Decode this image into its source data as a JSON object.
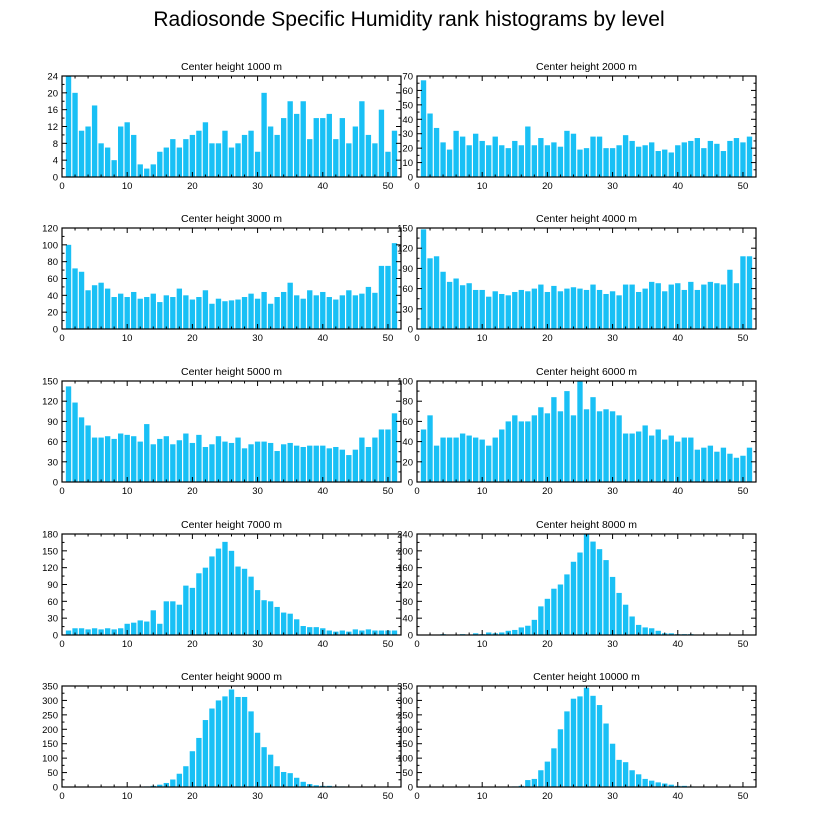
{
  "title": "Radiosonde Specific Humidity rank histograms by level",
  "bar_color": "#19c0f5",
  "chart_data": [
    {
      "type": "bar",
      "title": "Center height 1000 m",
      "xlim": [
        0,
        52
      ],
      "xticks": [
        0,
        10,
        20,
        30,
        40,
        50
      ],
      "ylim": [
        0,
        24
      ],
      "yticks": [
        0,
        4,
        8,
        12,
        16,
        20,
        24
      ],
      "x": [
        1,
        2,
        3,
        4,
        5,
        6,
        7,
        8,
        9,
        10,
        11,
        12,
        13,
        14,
        15,
        16,
        17,
        18,
        19,
        20,
        21,
        22,
        23,
        24,
        25,
        26,
        27,
        28,
        29,
        30,
        31,
        32,
        33,
        34,
        35,
        36,
        37,
        38,
        39,
        40,
        41,
        42,
        43,
        44,
        45,
        46,
        47,
        48,
        49,
        50,
        51
      ],
      "values": [
        24,
        20,
        11,
        12,
        17,
        8,
        7,
        4,
        12,
        13,
        10,
        3,
        2,
        3,
        6,
        7,
        9,
        7,
        9,
        10,
        11,
        13,
        8,
        8,
        11,
        7,
        8,
        10,
        11,
        6,
        20,
        12,
        10,
        14,
        18,
        15,
        18,
        9,
        14,
        14,
        15,
        9,
        14,
        8,
        12,
        18,
        10,
        8,
        16,
        6,
        11
      ]
    },
    {
      "type": "bar",
      "title": "Center height 2000 m",
      "xlim": [
        0,
        52
      ],
      "xticks": [
        0,
        10,
        20,
        30,
        40,
        50
      ],
      "ylim": [
        0,
        70
      ],
      "yticks": [
        0,
        10,
        20,
        30,
        40,
        50,
        60,
        70
      ],
      "x": [
        1,
        2,
        3,
        4,
        5,
        6,
        7,
        8,
        9,
        10,
        11,
        12,
        13,
        14,
        15,
        16,
        17,
        18,
        19,
        20,
        21,
        22,
        23,
        24,
        25,
        26,
        27,
        28,
        29,
        30,
        31,
        32,
        33,
        34,
        35,
        36,
        37,
        38,
        39,
        40,
        41,
        42,
        43,
        44,
        45,
        46,
        47,
        48,
        49,
        50,
        51
      ],
      "values": [
        67,
        44,
        34,
        24,
        19,
        32,
        28,
        22,
        30,
        25,
        22,
        28,
        22,
        20,
        25,
        22,
        35,
        22,
        27,
        22,
        24,
        21,
        32,
        30,
        19,
        20,
        28,
        28,
        20,
        20,
        22,
        29,
        25,
        21,
        22,
        24,
        18,
        19,
        17,
        22,
        24,
        25,
        27,
        20,
        25,
        23,
        18,
        25,
        27,
        24,
        28
      ]
    },
    {
      "type": "bar",
      "title": "Center height 3000 m",
      "xlim": [
        0,
        52
      ],
      "xticks": [
        0,
        10,
        20,
        30,
        40,
        50
      ],
      "ylim": [
        0,
        120
      ],
      "yticks": [
        0,
        20,
        40,
        60,
        80,
        100,
        120
      ],
      "x": [
        1,
        2,
        3,
        4,
        5,
        6,
        7,
        8,
        9,
        10,
        11,
        12,
        13,
        14,
        15,
        16,
        17,
        18,
        19,
        20,
        21,
        22,
        23,
        24,
        25,
        26,
        27,
        28,
        29,
        30,
        31,
        32,
        33,
        34,
        35,
        36,
        37,
        38,
        39,
        40,
        41,
        42,
        43,
        44,
        45,
        46,
        47,
        48,
        49,
        50,
        51
      ],
      "values": [
        100,
        72,
        68,
        46,
        52,
        55,
        48,
        38,
        42,
        38,
        44,
        36,
        38,
        42,
        32,
        40,
        38,
        48,
        40,
        35,
        38,
        46,
        30,
        36,
        33,
        34,
        35,
        38,
        42,
        36,
        44,
        30,
        38,
        44,
        55,
        40,
        36,
        46,
        40,
        44,
        38,
        35,
        40,
        46,
        40,
        42,
        50,
        43,
        75,
        75,
        102
      ]
    },
    {
      "type": "bar",
      "title": "Center height 4000 m",
      "xlim": [
        0,
        52
      ],
      "xticks": [
        0,
        10,
        20,
        30,
        40,
        50
      ],
      "ylim": [
        0,
        150
      ],
      "yticks": [
        0,
        30,
        60,
        90,
        120,
        150
      ],
      "x": [
        1,
        2,
        3,
        4,
        5,
        6,
        7,
        8,
        9,
        10,
        11,
        12,
        13,
        14,
        15,
        16,
        17,
        18,
        19,
        20,
        21,
        22,
        23,
        24,
        25,
        26,
        27,
        28,
        29,
        30,
        31,
        32,
        33,
        34,
        35,
        36,
        37,
        38,
        39,
        40,
        41,
        42,
        43,
        44,
        45,
        46,
        47,
        48,
        49,
        50,
        51
      ],
      "values": [
        148,
        105,
        108,
        85,
        70,
        75,
        65,
        68,
        58,
        58,
        48,
        56,
        52,
        50,
        55,
        58,
        56,
        60,
        66,
        55,
        64,
        56,
        60,
        62,
        60,
        58,
        66,
        58,
        52,
        56,
        50,
        66,
        66,
        55,
        60,
        70,
        68,
        56,
        66,
        68,
        58,
        70,
        58,
        66,
        70,
        68,
        66,
        88,
        68,
        108,
        108
      ]
    },
    {
      "type": "bar",
      "title": "Center height 5000 m",
      "xlim": [
        0,
        52
      ],
      "xticks": [
        0,
        10,
        20,
        30,
        40,
        50
      ],
      "ylim": [
        0,
        150
      ],
      "yticks": [
        0,
        30,
        60,
        90,
        120,
        150
      ],
      "x": [
        1,
        2,
        3,
        4,
        5,
        6,
        7,
        8,
        9,
        10,
        11,
        12,
        13,
        14,
        15,
        16,
        17,
        18,
        19,
        20,
        21,
        22,
        23,
        24,
        25,
        26,
        27,
        28,
        29,
        30,
        31,
        32,
        33,
        34,
        35,
        36,
        37,
        38,
        39,
        40,
        41,
        42,
        43,
        44,
        45,
        46,
        47,
        48,
        49,
        50,
        51
      ],
      "values": [
        142,
        118,
        96,
        84,
        66,
        66,
        68,
        64,
        72,
        70,
        68,
        60,
        86,
        56,
        64,
        68,
        56,
        62,
        72,
        58,
        70,
        52,
        56,
        68,
        60,
        58,
        66,
        50,
        56,
        60,
        60,
        58,
        46,
        56,
        58,
        54,
        52,
        54,
        54,
        54,
        50,
        52,
        48,
        40,
        48,
        66,
        52,
        66,
        78,
        78,
        102
      ]
    },
    {
      "type": "bar",
      "title": "Center height 6000 m",
      "xlim": [
        0,
        52
      ],
      "xticks": [
        0,
        10,
        20,
        30,
        40,
        50
      ],
      "ylim": [
        0,
        100
      ],
      "yticks": [
        0,
        20,
        40,
        60,
        80,
        100
      ],
      "x": [
        1,
        2,
        3,
        4,
        5,
        6,
        7,
        8,
        9,
        10,
        11,
        12,
        13,
        14,
        15,
        16,
        17,
        18,
        19,
        20,
        21,
        22,
        23,
        24,
        25,
        26,
        27,
        28,
        29,
        30,
        31,
        32,
        33,
        34,
        35,
        36,
        37,
        38,
        39,
        40,
        41,
        42,
        43,
        44,
        45,
        46,
        47,
        48,
        49,
        50,
        51
      ],
      "values": [
        52,
        66,
        36,
        44,
        44,
        44,
        48,
        46,
        44,
        42,
        36,
        44,
        52,
        60,
        66,
        60,
        60,
        66,
        74,
        68,
        84,
        70,
        90,
        66,
        100,
        72,
        84,
        70,
        72,
        70,
        66,
        48,
        48,
        50,
        56,
        46,
        52,
        42,
        46,
        40,
        44,
        44,
        32,
        34,
        36,
        30,
        34,
        28,
        24,
        26,
        34
      ]
    },
    {
      "type": "bar",
      "title": "Center height 7000 m",
      "xlim": [
        0,
        52
      ],
      "xticks": [
        0,
        10,
        20,
        30,
        40,
        50
      ],
      "ylim": [
        0,
        180
      ],
      "yticks": [
        0,
        30,
        60,
        90,
        120,
        150,
        180
      ],
      "x": [
        1,
        2,
        3,
        4,
        5,
        6,
        7,
        8,
        9,
        10,
        11,
        12,
        13,
        14,
        15,
        16,
        17,
        18,
        19,
        20,
        21,
        22,
        23,
        24,
        25,
        26,
        27,
        28,
        29,
        30,
        31,
        32,
        33,
        34,
        35,
        36,
        37,
        38,
        39,
        40,
        41,
        42,
        43,
        44,
        45,
        46,
        47,
        48,
        49,
        50,
        51
      ],
      "values": [
        8,
        12,
        12,
        10,
        12,
        10,
        12,
        10,
        12,
        20,
        22,
        26,
        24,
        44,
        20,
        60,
        60,
        54,
        88,
        84,
        110,
        120,
        140,
        154,
        166,
        150,
        122,
        118,
        104,
        80,
        62,
        60,
        50,
        40,
        38,
        28,
        16,
        14,
        14,
        12,
        8,
        6,
        8,
        6,
        10,
        8,
        10,
        8,
        8,
        8,
        8
      ]
    },
    {
      "type": "bar",
      "title": "Center height 8000 m",
      "xlim": [
        0,
        52
      ],
      "xticks": [
        0,
        10,
        20,
        30,
        40,
        50
      ],
      "ylim": [
        0,
        240
      ],
      "yticks": [
        0,
        40,
        80,
        120,
        160,
        200,
        240
      ],
      "x": [
        1,
        2,
        3,
        4,
        5,
        6,
        7,
        8,
        9,
        10,
        11,
        12,
        13,
        14,
        15,
        16,
        17,
        18,
        19,
        20,
        21,
        22,
        23,
        24,
        25,
        26,
        27,
        28,
        29,
        30,
        31,
        32,
        33,
        34,
        35,
        36,
        37,
        38,
        39,
        40,
        41,
        42,
        43,
        44,
        45,
        46,
        47,
        48,
        49,
        50,
        51
      ],
      "values": [
        0,
        0,
        0,
        2,
        0,
        0,
        2,
        0,
        4,
        2,
        6,
        4,
        6,
        10,
        12,
        18,
        22,
        36,
        68,
        86,
        110,
        120,
        144,
        174,
        196,
        240,
        222,
        204,
        178,
        138,
        100,
        72,
        44,
        24,
        18,
        16,
        10,
        4,
        4,
        2,
        2,
        2,
        0,
        0,
        0,
        0,
        0,
        0,
        0,
        0,
        0
      ]
    },
    {
      "type": "bar",
      "title": "Center height 9000 m",
      "xlim": [
        0,
        52
      ],
      "xticks": [
        0,
        10,
        20,
        30,
        40,
        50
      ],
      "ylim": [
        0,
        350
      ],
      "yticks": [
        0,
        50,
        100,
        150,
        200,
        250,
        300,
        350
      ],
      "x": [
        1,
        2,
        3,
        4,
        5,
        6,
        7,
        8,
        9,
        10,
        11,
        12,
        13,
        14,
        15,
        16,
        17,
        18,
        19,
        20,
        21,
        22,
        23,
        24,
        25,
        26,
        27,
        28,
        29,
        30,
        31,
        32,
        33,
        34,
        35,
        36,
        37,
        38,
        39,
        40,
        41,
        42,
        43,
        44,
        45,
        46,
        47,
        48,
        49,
        50,
        51
      ],
      "values": [
        0,
        0,
        0,
        0,
        0,
        0,
        0,
        0,
        0,
        0,
        0,
        0,
        2,
        4,
        8,
        14,
        26,
        46,
        72,
        124,
        170,
        232,
        272,
        300,
        314,
        338,
        312,
        312,
        262,
        188,
        138,
        112,
        72,
        52,
        48,
        32,
        18,
        10,
        6,
        4,
        4,
        2,
        2,
        0,
        0,
        0,
        0,
        0,
        0,
        0,
        0
      ]
    },
    {
      "type": "bar",
      "title": "Center height 10000 m",
      "xlim": [
        0,
        52
      ],
      "xticks": [
        0,
        10,
        20,
        30,
        40,
        50
      ],
      "ylim": [
        0,
        350
      ],
      "yticks": [
        0,
        50,
        100,
        150,
        200,
        250,
        300,
        350
      ],
      "x": [
        1,
        2,
        3,
        4,
        5,
        6,
        7,
        8,
        9,
        10,
        11,
        12,
        13,
        14,
        15,
        16,
        17,
        18,
        19,
        20,
        21,
        22,
        23,
        24,
        25,
        26,
        27,
        28,
        29,
        30,
        31,
        32,
        33,
        34,
        35,
        36,
        37,
        38,
        39,
        40,
        41,
        42,
        43,
        44,
        45,
        46,
        47,
        48,
        49,
        50,
        51
      ],
      "values": [
        0,
        0,
        0,
        0,
        0,
        0,
        0,
        0,
        0,
        0,
        0,
        0,
        0,
        0,
        2,
        4,
        24,
        28,
        58,
        88,
        134,
        200,
        262,
        306,
        314,
        344,
        316,
        284,
        220,
        150,
        94,
        86,
        58,
        44,
        28,
        22,
        16,
        12,
        8,
        4,
        4,
        2,
        0,
        0,
        0,
        0,
        0,
        0,
        0,
        0,
        0
      ]
    }
  ]
}
